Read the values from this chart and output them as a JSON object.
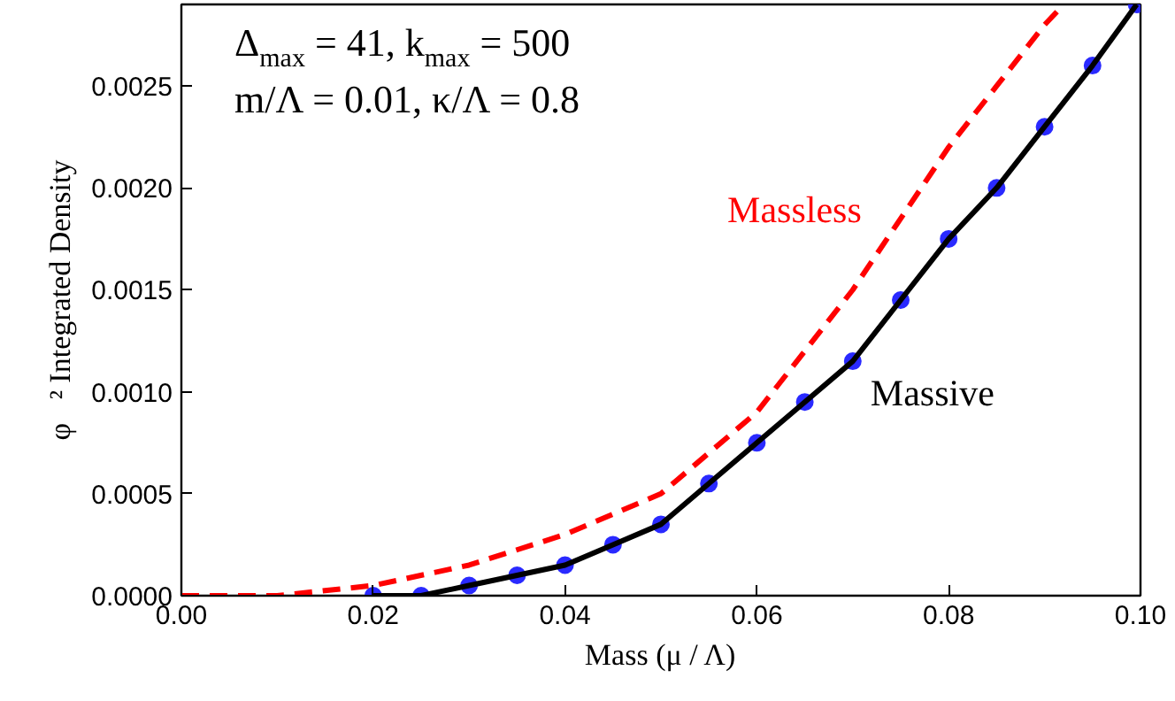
{
  "chart_data": {
    "type": "line",
    "xlabel": "Mass (μ / Λ)",
    "ylabel": "φ⃗² Integrated Density",
    "annotations": [
      "Δ$_{max}$ = 41, k$_{max}$ = 500",
      "m/Λ = 0.01, κ/Λ = 0.8"
    ],
    "xlim": [
      0,
      0.1
    ],
    "ylim": [
      0,
      0.0029
    ],
    "xticks": [
      {
        "value": 0,
        "label": "0.00"
      },
      {
        "value": 0.02,
        "label": "0.02"
      },
      {
        "value": 0.04,
        "label": "0.04"
      },
      {
        "value": 0.06,
        "label": "0.06"
      },
      {
        "value": 0.08,
        "label": "0.08"
      },
      {
        "value": 0.1,
        "label": "0.10"
      }
    ],
    "yticks": [
      {
        "value": 0,
        "label": "0.0000"
      },
      {
        "value": 0.0005,
        "label": "0.0005"
      },
      {
        "value": 0.001,
        "label": "0.0010"
      },
      {
        "value": 0.0015,
        "label": "0.0015"
      },
      {
        "value": 0.002,
        "label": "0.0020"
      },
      {
        "value": 0.0025,
        "label": "0.0025"
      }
    ],
    "grid": false,
    "series": [
      {
        "type": "scatter",
        "color": "#2a2aff",
        "marker": "circle",
        "x": [
          0.02,
          0.025,
          0.03,
          0.035,
          0.04,
          0.045,
          0.05,
          0.055,
          0.06,
          0.065,
          0.07,
          0.075,
          0.08,
          0.085,
          0.09,
          0.095,
          0.0996
        ],
        "values": [
          0,
          0,
          5e-05,
          0.0001,
          0.00015,
          0.00025,
          0.00035,
          0.00055,
          0.00075,
          0.00095,
          0.00115,
          0.00145,
          0.00175,
          0.002,
          0.0023,
          0.0026,
          0.0029
        ]
      },
      {
        "name": "Massive",
        "color": "#000000",
        "line_style": "solid",
        "x": [
          0.02,
          0.025,
          0.03,
          0.035,
          0.04,
          0.045,
          0.05,
          0.055,
          0.06,
          0.065,
          0.07,
          0.075,
          0.08,
          0.085,
          0.09,
          0.095,
          0.0996
        ],
        "values": [
          0,
          0,
          5e-05,
          0.0001,
          0.00015,
          0.00025,
          0.00035,
          0.00055,
          0.00075,
          0.00095,
          0.00115,
          0.00145,
          0.00175,
          0.002,
          0.0023,
          0.0026,
          0.0029
        ]
      },
      {
        "name": "Massless",
        "color": "#ff0000",
        "line_style": "dashed",
        "x": [
          0,
          0.01,
          0.02,
          0.03,
          0.04,
          0.05,
          0.06,
          0.065,
          0.07,
          0.075,
          0.08,
          0.085,
          0.09,
          0.092
        ],
        "values": [
          0,
          0,
          5e-05,
          0.00015,
          0.0003,
          0.0005,
          0.0009,
          0.0012,
          0.0015,
          0.00185,
          0.0022,
          0.0025,
          0.0028,
          0.0029
        ]
      }
    ]
  }
}
